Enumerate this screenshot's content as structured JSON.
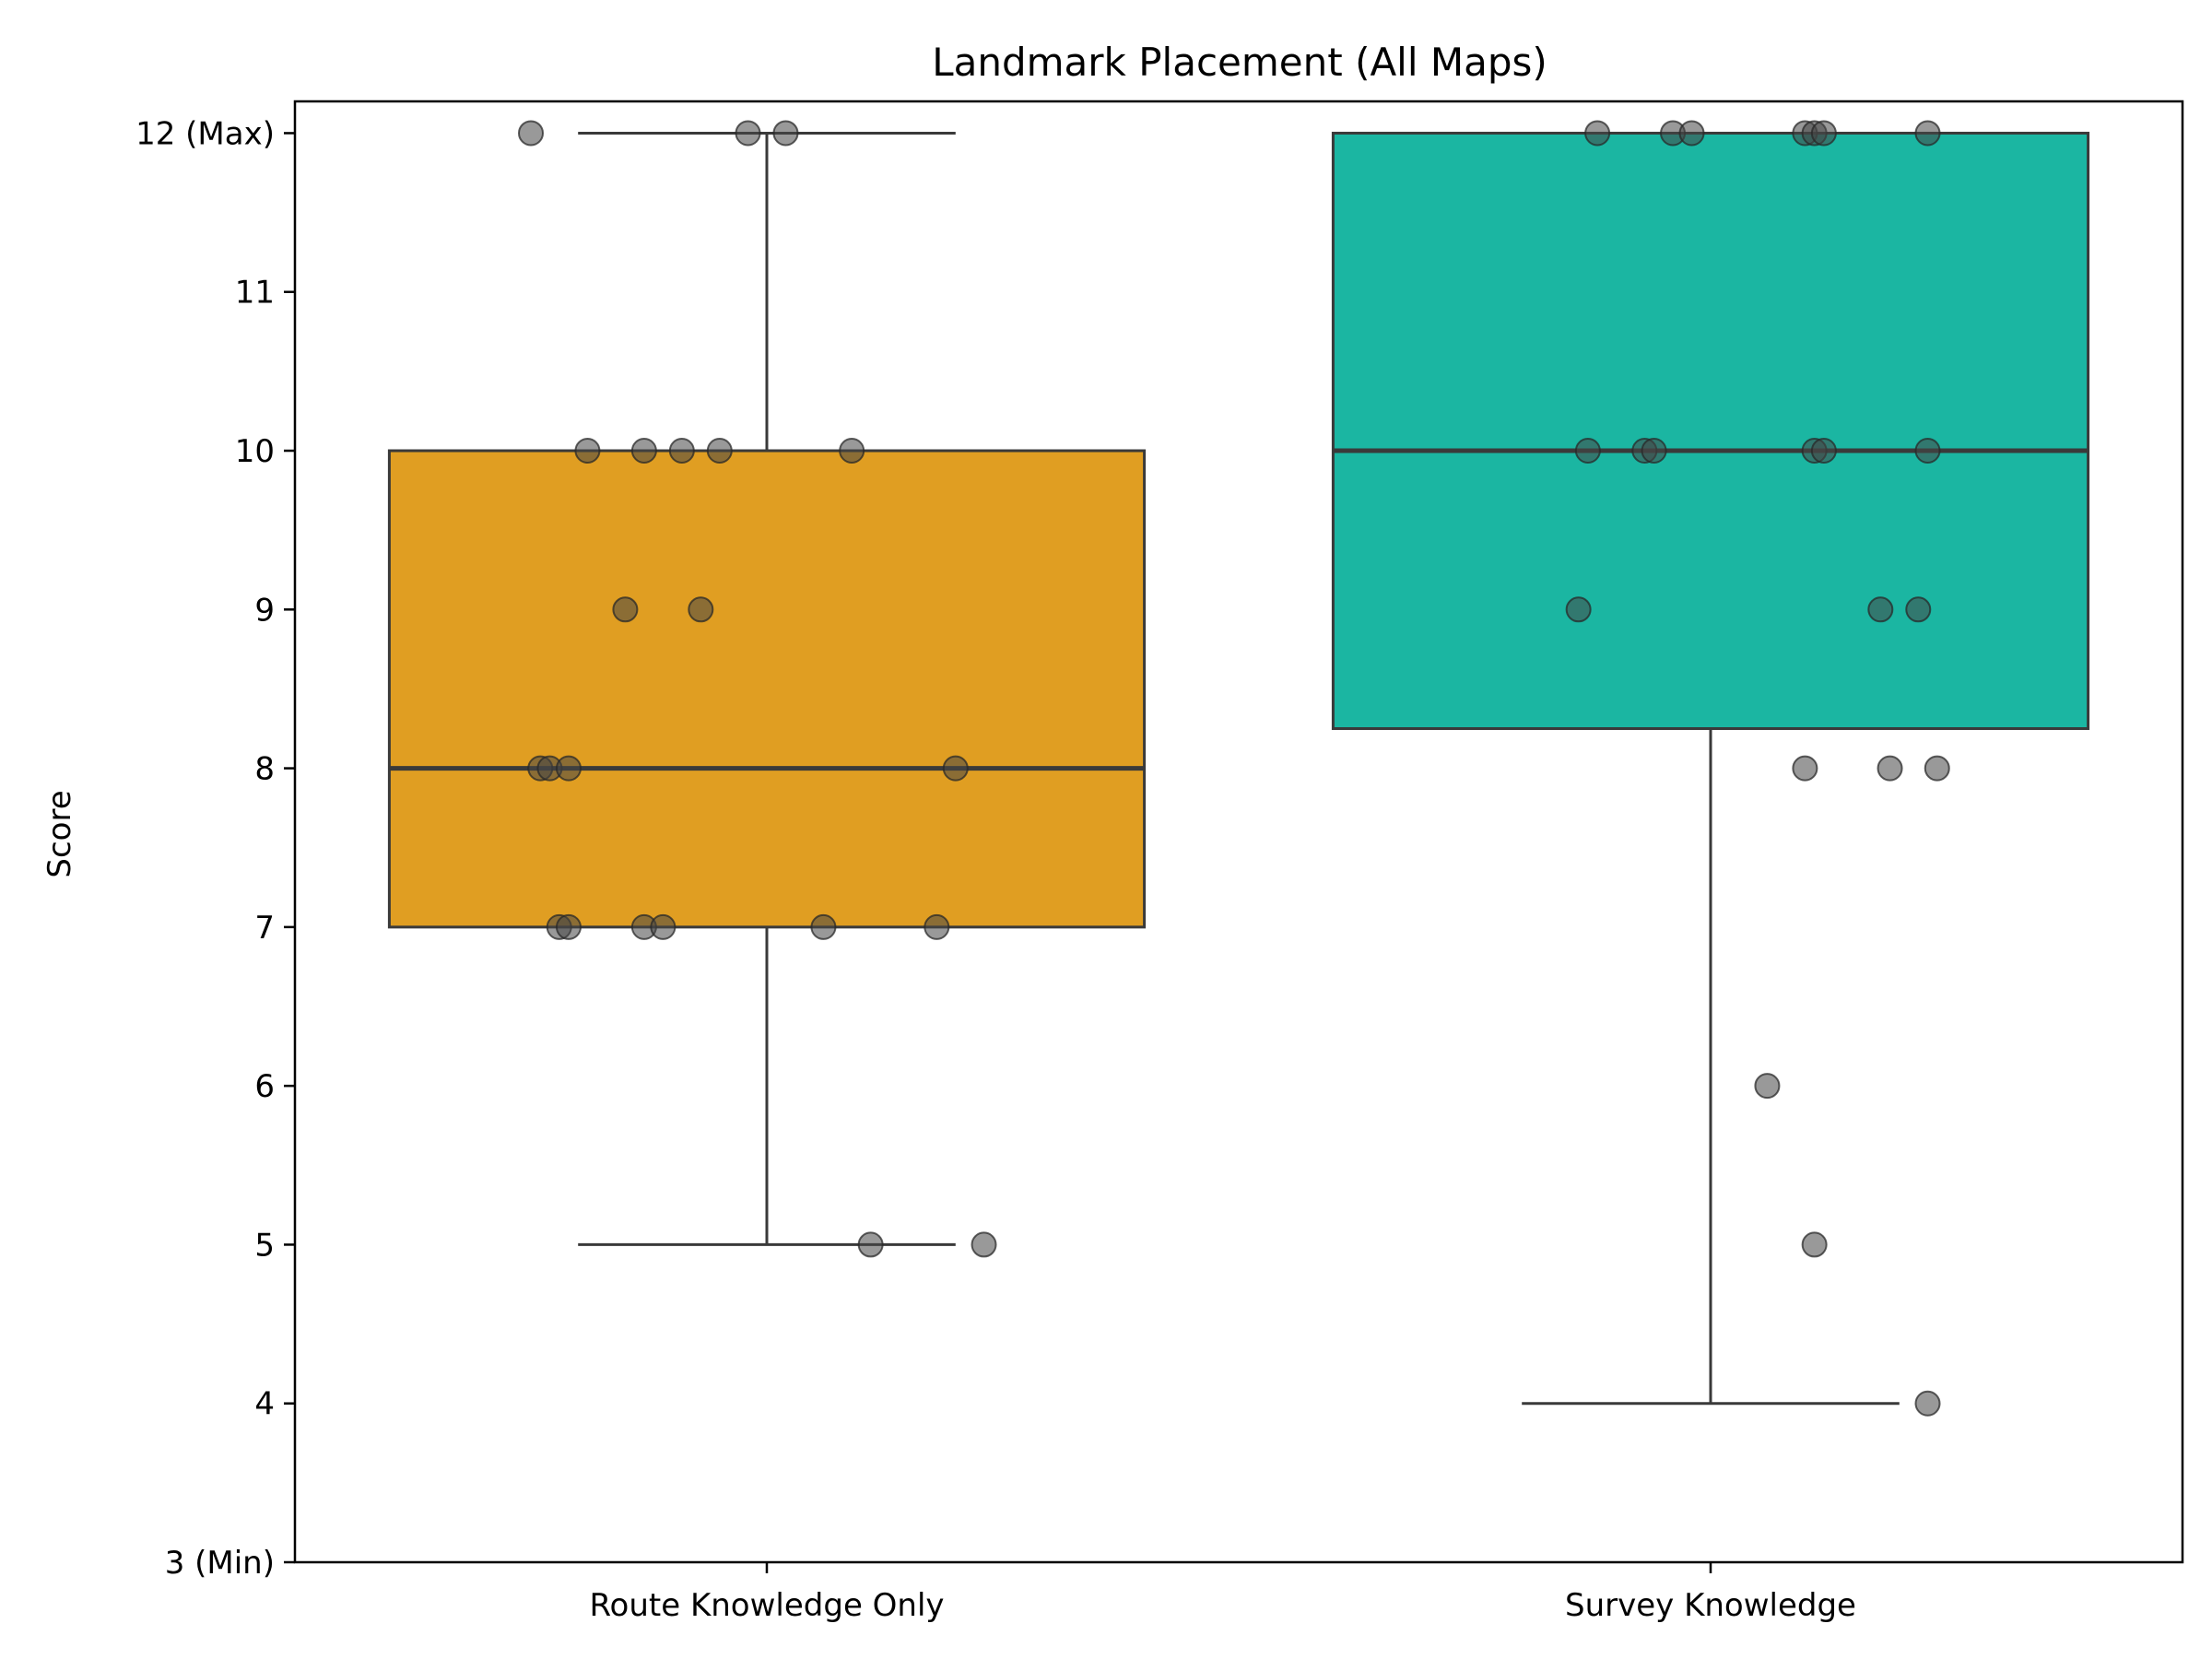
{
  "chart_data": {
    "type": "box",
    "title": "Landmark Placement (All Maps)",
    "xlabel": "",
    "ylabel": "Score",
    "ylim": [
      3,
      12.2
    ],
    "grid": false,
    "yticks": [
      {
        "value": 3,
        "label": "3 (Min)"
      },
      {
        "value": 4,
        "label": "4"
      },
      {
        "value": 5,
        "label": "5"
      },
      {
        "value": 6,
        "label": "6"
      },
      {
        "value": 7,
        "label": "7"
      },
      {
        "value": 8,
        "label": "8"
      },
      {
        "value": 9,
        "label": "9"
      },
      {
        "value": 10,
        "label": "10"
      },
      {
        "value": 11,
        "label": "11"
      },
      {
        "value": 12,
        "label": "12 (Max)"
      }
    ],
    "categories": [
      "Route Knowledge Only",
      "Survey Knowledge"
    ],
    "boxes": [
      {
        "category": "Route Knowledge Only",
        "color": "#E09E22",
        "whisker_low": 5,
        "q1": 7,
        "median": 8,
        "q3": 10,
        "whisker_high": 12,
        "points": [
          {
            "value": 12,
            "jitter": -0.25
          },
          {
            "value": 12,
            "jitter": -0.02
          },
          {
            "value": 12,
            "jitter": 0.02
          },
          {
            "value": 10,
            "jitter": -0.19
          },
          {
            "value": 10,
            "jitter": -0.13
          },
          {
            "value": 10,
            "jitter": -0.09
          },
          {
            "value": 10,
            "jitter": -0.05
          },
          {
            "value": 10,
            "jitter": 0.09
          },
          {
            "value": 9,
            "jitter": -0.15
          },
          {
            "value": 9,
            "jitter": -0.07
          },
          {
            "value": 8,
            "jitter": -0.24
          },
          {
            "value": 8,
            "jitter": -0.23
          },
          {
            "value": 8,
            "jitter": -0.21
          },
          {
            "value": 8,
            "jitter": 0.2
          },
          {
            "value": 7,
            "jitter": -0.22
          },
          {
            "value": 7,
            "jitter": -0.21
          },
          {
            "value": 7,
            "jitter": -0.13
          },
          {
            "value": 7,
            "jitter": -0.11
          },
          {
            "value": 7,
            "jitter": 0.06
          },
          {
            "value": 7,
            "jitter": 0.18
          },
          {
            "value": 5,
            "jitter": 0.11
          },
          {
            "value": 5,
            "jitter": 0.23
          }
        ]
      },
      {
        "category": "Survey Knowledge",
        "color": "#1BB6A2",
        "whisker_low": 4,
        "q1": 8.25,
        "median": 10,
        "q3": 12,
        "whisker_high": 12,
        "points": [
          {
            "value": 12,
            "jitter": -0.12
          },
          {
            "value": 12,
            "jitter": -0.04
          },
          {
            "value": 12,
            "jitter": -0.02
          },
          {
            "value": 12,
            "jitter": 0.1
          },
          {
            "value": 12,
            "jitter": 0.11
          },
          {
            "value": 12,
            "jitter": 0.12
          },
          {
            "value": 12,
            "jitter": 0.23
          },
          {
            "value": 10,
            "jitter": -0.13
          },
          {
            "value": 10,
            "jitter": -0.07
          },
          {
            "value": 10,
            "jitter": -0.06
          },
          {
            "value": 10,
            "jitter": 0.11
          },
          {
            "value": 10,
            "jitter": 0.12
          },
          {
            "value": 10,
            "jitter": 0.23
          },
          {
            "value": 9,
            "jitter": -0.14
          },
          {
            "value": 9,
            "jitter": 0.18
          },
          {
            "value": 9,
            "jitter": 0.22
          },
          {
            "value": 8,
            "jitter": 0.1
          },
          {
            "value": 8,
            "jitter": 0.19
          },
          {
            "value": 8,
            "jitter": 0.24
          },
          {
            "value": 6,
            "jitter": 0.06
          },
          {
            "value": 5,
            "jitter": 0.11
          },
          {
            "value": 4,
            "jitter": 0.23
          }
        ]
      }
    ]
  }
}
